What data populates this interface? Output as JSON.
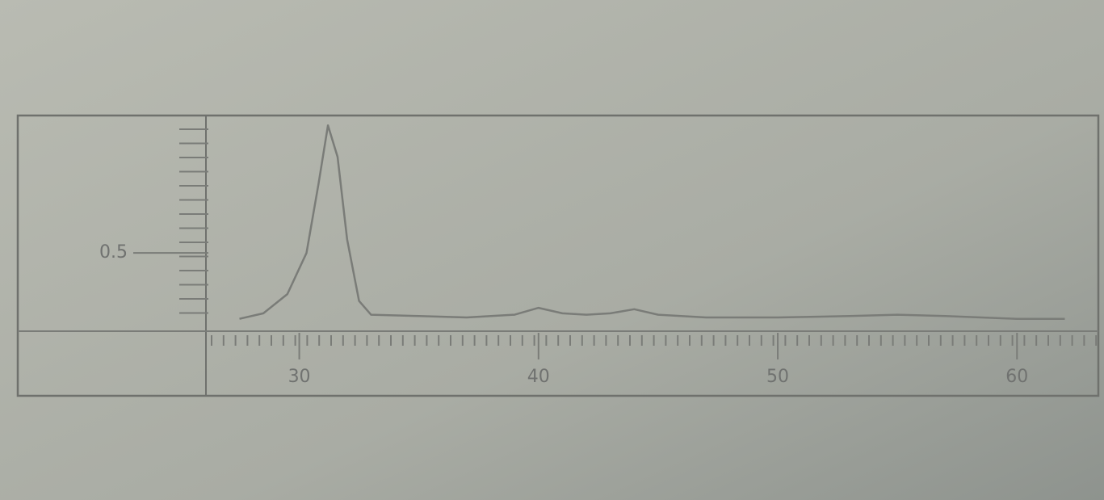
{
  "chart_data": {
    "type": "line",
    "x": [
      27.5,
      28.5,
      29.5,
      30.3,
      30.8,
      31.2,
      31.6,
      32.0,
      32.5,
      33,
      35,
      37,
      39,
      40,
      41,
      42,
      43,
      44,
      45,
      47,
      50,
      53,
      55,
      57,
      60,
      62
    ],
    "series": [
      {
        "color": "#7a7c78",
        "values": [
          0.02,
          0.06,
          0.2,
          0.5,
          1.0,
          1.43,
          1.2,
          0.6,
          0.15,
          0.05,
          0.04,
          0.03,
          0.05,
          0.1,
          0.06,
          0.05,
          0.06,
          0.09,
          0.05,
          0.03,
          0.03,
          0.04,
          0.05,
          0.04,
          0.02,
          0.02
        ]
      }
    ],
    "xlim": [
      26.2,
      63.4
    ],
    "xticks": [
      30,
      40,
      50,
      60
    ],
    "ylim": [
      -0.07,
      1.49
    ],
    "yticks": [
      0.5
    ]
  }
}
